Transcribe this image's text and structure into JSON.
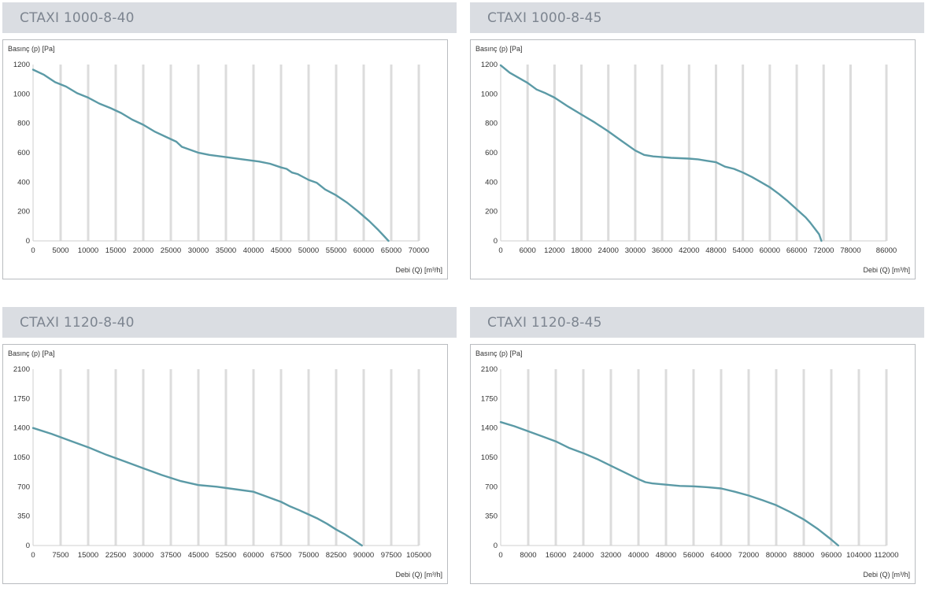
{
  "chart_data": [
    {
      "type": "line",
      "title": "CTAXI 1000-8-40",
      "ylabel": "Basınç (p) [Pa]",
      "xlabel": "Debi (Q) [m³/h]",
      "xlim": [
        0,
        70000
      ],
      "ylim": [
        0,
        1200
      ],
      "x_ticks": [
        0,
        5000,
        10000,
        15000,
        20000,
        25000,
        30000,
        35000,
        40000,
        45000,
        50000,
        55000,
        60000,
        65000,
        70000
      ],
      "y_ticks": [
        0,
        200,
        400,
        600,
        800,
        1000,
        1200
      ],
      "series": [
        {
          "color": "#5b9aa6",
          "x": [
            0,
            2000,
            4000,
            6000,
            8000,
            10000,
            12000,
            14000,
            16000,
            18000,
            20000,
            22000,
            24000,
            26000,
            27000,
            30000,
            32000,
            35000,
            38000,
            41000,
            43000,
            45000,
            46000,
            47000,
            48000,
            50000,
            51500,
            53000,
            55000,
            57000,
            59000,
            61000,
            62500,
            63500,
            64500
          ],
          "y": [
            1165,
            1130,
            1080,
            1050,
            1005,
            975,
            935,
            905,
            870,
            825,
            790,
            745,
            710,
            675,
            640,
            600,
            585,
            570,
            555,
            540,
            525,
            500,
            490,
            465,
            455,
            415,
            395,
            350,
            310,
            260,
            200,
            135,
            80,
            40,
            0
          ]
        }
      ]
    },
    {
      "type": "line",
      "title": "CTAXI 1000-8-45",
      "ylabel": "Basınç (p) [Pa]",
      "xlabel": "Debi (Q) [m³/h]",
      "xlim": [
        0,
        86000
      ],
      "ylim": [
        0,
        1200
      ],
      "x_ticks": [
        0,
        6000,
        12000,
        18000,
        24000,
        30000,
        36000,
        42000,
        48000,
        54000,
        60000,
        66000,
        72000,
        78000,
        86000
      ],
      "y_ticks": [
        0,
        200,
        400,
        600,
        800,
        1000,
        1200
      ],
      "series": [
        {
          "color": "#5b9aa6",
          "x": [
            0,
            2000,
            4000,
            6000,
            8000,
            10000,
            12000,
            15000,
            18000,
            21000,
            24000,
            27000,
            30000,
            32000,
            34000,
            36000,
            38000,
            42000,
            44000,
            46000,
            48000,
            50000,
            52000,
            54000,
            56000,
            58000,
            60000,
            62000,
            64000,
            66000,
            68000,
            69000,
            70000,
            71000,
            71500
          ],
          "y": [
            1195,
            1145,
            1110,
            1075,
            1030,
            1005,
            975,
            915,
            860,
            805,
            745,
            680,
            615,
            585,
            575,
            570,
            565,
            560,
            555,
            545,
            535,
            505,
            490,
            465,
            435,
            400,
            365,
            320,
            270,
            215,
            160,
            125,
            85,
            45,
            0
          ]
        }
      ]
    },
    {
      "type": "line",
      "title": "CTAXI 1120-8-40",
      "ylabel": "Basınç (p) [Pa]",
      "xlabel": "Debi (Q) [m³/h]",
      "xlim": [
        0,
        105000
      ],
      "ylim": [
        0,
        2100
      ],
      "x_ticks": [
        0,
        7500,
        15000,
        22500,
        30000,
        37500,
        45000,
        52500,
        60000,
        67500,
        75000,
        82500,
        90000,
        97500,
        105000
      ],
      "y_ticks": [
        0,
        350,
        700,
        1050,
        1400,
        1750,
        2100
      ],
      "series": [
        {
          "color": "#5b9aa6",
          "x": [
            0,
            5000,
            10000,
            15000,
            20000,
            25000,
            30000,
            35000,
            40000,
            45000,
            50000,
            55000,
            60000,
            62500,
            65000,
            67500,
            70000,
            72500,
            75000,
            77500,
            80000,
            82500,
            85000,
            87500,
            89500
          ],
          "y": [
            1400,
            1330,
            1250,
            1170,
            1080,
            1000,
            920,
            840,
            770,
            720,
            700,
            670,
            640,
            600,
            560,
            520,
            465,
            420,
            370,
            320,
            260,
            190,
            130,
            60,
            0
          ]
        }
      ]
    },
    {
      "type": "line",
      "title": "CTAXI 1120-8-45",
      "ylabel": "Basınç (p) [Pa]",
      "xlabel": "Debi (Q) [m³/h]",
      "xlim": [
        0,
        112000
      ],
      "ylim": [
        0,
        2100
      ],
      "x_ticks": [
        0,
        8000,
        16000,
        24000,
        32000,
        40000,
        48000,
        56000,
        64000,
        72000,
        80000,
        88000,
        96000,
        104000,
        112000
      ],
      "y_ticks": [
        0,
        350,
        700,
        1050,
        1400,
        1750,
        2100
      ],
      "series": [
        {
          "color": "#5b9aa6",
          "x": [
            0,
            4000,
            8000,
            12000,
            16000,
            20000,
            24000,
            28000,
            32000,
            36000,
            40000,
            42000,
            44000,
            48000,
            52000,
            56000,
            60000,
            64000,
            68000,
            72000,
            76000,
            80000,
            84000,
            88000,
            92000,
            96000,
            98000
          ],
          "y": [
            1470,
            1420,
            1360,
            1300,
            1240,
            1160,
            1100,
            1030,
            950,
            870,
            790,
            755,
            740,
            725,
            710,
            705,
            695,
            680,
            640,
            595,
            540,
            480,
            400,
            310,
            200,
            70,
            0
          ]
        }
      ]
    }
  ]
}
